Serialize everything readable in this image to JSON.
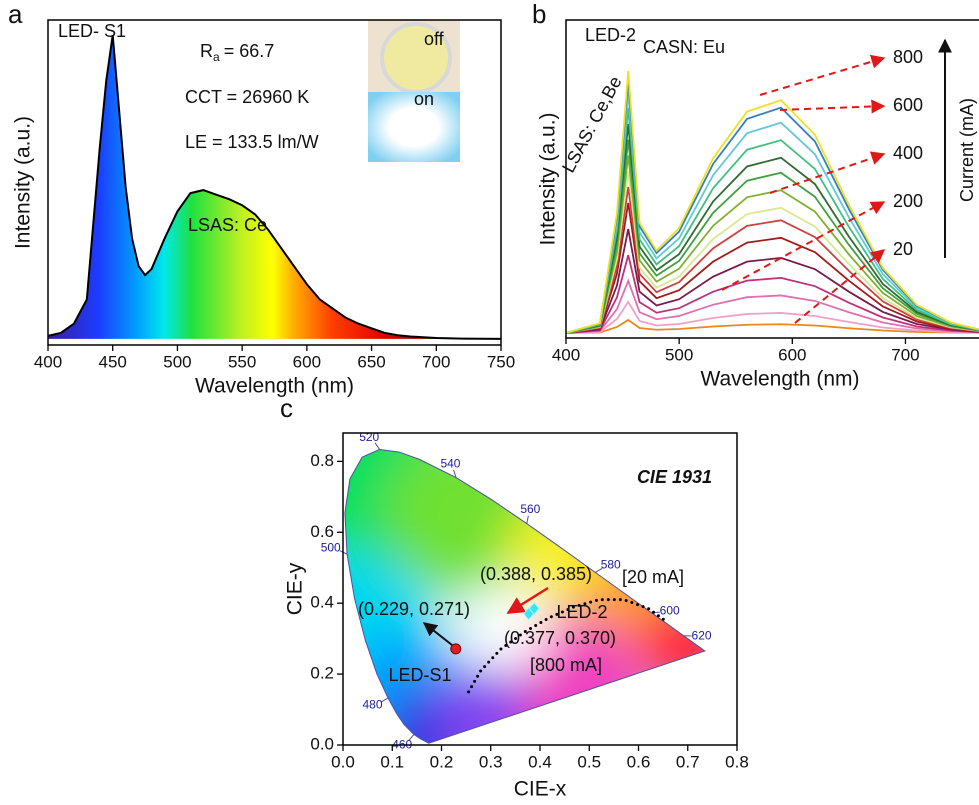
{
  "chart_data": [
    {
      "type": "area",
      "panel": "a",
      "label": "LED- S1",
      "ra": {
        "symbol": "R",
        "subscript": "a",
        "value": "= 66.7"
      },
      "cct": "CCT = 26960 K",
      "le": "LE = 133.5 lm/W",
      "phosphor": "LSAS: Ce",
      "inset_off": "off",
      "inset_on": "on",
      "x_label": "Wavelength (nm)",
      "y_label": "Intensity (a.u.)",
      "x": [
        400,
        410,
        420,
        430,
        440,
        445,
        450,
        455,
        460,
        465,
        470,
        475,
        480,
        490,
        500,
        510,
        520,
        530,
        540,
        550,
        560,
        570,
        580,
        590,
        600,
        610,
        620,
        630,
        640,
        650,
        660,
        670,
        680,
        700,
        720,
        750
      ],
      "values": [
        0.01,
        0.02,
        0.05,
        0.13,
        0.63,
        0.85,
        1.0,
        0.75,
        0.5,
        0.33,
        0.24,
        0.21,
        0.23,
        0.33,
        0.42,
        0.48,
        0.49,
        0.475,
        0.46,
        0.44,
        0.41,
        0.36,
        0.3,
        0.24,
        0.18,
        0.13,
        0.1,
        0.07,
        0.05,
        0.035,
        0.02,
        0.012,
        0.008,
        0.003,
        0.001,
        0
      ],
      "color": "#000000",
      "xlim": [
        400,
        750
      ],
      "ylim": [
        -0.02,
        1.05
      ],
      "xticks": [
        400,
        450,
        500,
        550,
        600,
        650,
        700,
        750
      ]
    },
    {
      "type": "line",
      "panel": "b",
      "label": "LED-2",
      "phosphors": [
        "CASN: Eu",
        "LSAS: Ce,Be"
      ],
      "x_label": "Wavelength (nm)",
      "y_label": "Intensity (a.u.)",
      "current_label": "Current (mA)",
      "current_ticks": [
        20,
        200,
        400,
        600,
        800
      ],
      "x": [
        400,
        430,
        445,
        455,
        465,
        480,
        500,
        530,
        560,
        590,
        620,
        650,
        680,
        710,
        740,
        765
      ],
      "series": [
        {
          "color": "#e8891c",
          "values": [
            0,
            0.002,
            0.024,
            0.052,
            0.02,
            0.013,
            0.016,
            0.026,
            0.033,
            0.035,
            0.03,
            0.019,
            0.01,
            0.004,
            0.002,
            0.001
          ]
        },
        {
          "color": "#f0a0c8",
          "values": [
            0,
            0.004,
            0.056,
            0.124,
            0.048,
            0.03,
            0.036,
            0.06,
            0.076,
            0.08,
            0.068,
            0.044,
            0.022,
            0.01,
            0.004,
            0.001
          ]
        },
        {
          "color": "#e070b0",
          "values": [
            0,
            0.008,
            0.095,
            0.208,
            0.083,
            0.055,
            0.068,
            0.113,
            0.143,
            0.15,
            0.128,
            0.083,
            0.042,
            0.018,
            0.007,
            0.002
          ]
        },
        {
          "color": "#c0307a",
          "values": [
            0,
            0.011,
            0.142,
            0.311,
            0.123,
            0.081,
            0.099,
            0.165,
            0.209,
            0.22,
            0.187,
            0.121,
            0.062,
            0.026,
            0.01,
            0.003
          ]
        },
        {
          "color": "#7a1a4a",
          "values": [
            0,
            0.015,
            0.189,
            0.415,
            0.165,
            0.11,
            0.135,
            0.225,
            0.285,
            0.3,
            0.255,
            0.165,
            0.084,
            0.036,
            0.014,
            0.005
          ]
        },
        {
          "color": "#a01c1c",
          "values": [
            0,
            0.019,
            0.236,
            0.519,
            0.207,
            0.139,
            0.171,
            0.285,
            0.361,
            0.38,
            0.323,
            0.209,
            0.106,
            0.046,
            0.017,
            0.006
          ]
        },
        {
          "color": "#d04040",
          "values": [
            0,
            0.021,
            0.266,
            0.583,
            0.236,
            0.163,
            0.203,
            0.338,
            0.428,
            0.45,
            0.383,
            0.248,
            0.126,
            0.054,
            0.02,
            0.007
          ]
        },
        {
          "color": "#d8e890",
          "values": [
            0,
            0.024,
            0.294,
            0.645,
            0.261,
            0.181,
            0.225,
            0.375,
            0.475,
            0.5,
            0.425,
            0.275,
            0.14,
            0.06,
            0.023,
            0.008
          ]
        },
        {
          "color": "#80b030",
          "values": [
            0,
            0.026,
            0.323,
            0.709,
            0.29,
            0.205,
            0.257,
            0.428,
            0.542,
            0.57,
            0.485,
            0.314,
            0.16,
            0.068,
            0.026,
            0.009
          ]
        },
        {
          "color": "#40a040",
          "values": [
            0,
            0.029,
            0.352,
            0.772,
            0.318,
            0.229,
            0.288,
            0.48,
            0.608,
            0.64,
            0.544,
            0.352,
            0.179,
            0.077,
            0.029,
            0.01
          ]
        },
        {
          "color": "#2f6a30",
          "values": [
            0,
            0.031,
            0.381,
            0.835,
            0.345,
            0.25,
            0.315,
            0.525,
            0.665,
            0.7,
            0.595,
            0.385,
            0.196,
            0.084,
            0.032,
            0.011
          ]
        },
        {
          "color": "#40c080",
          "values": [
            0,
            0.034,
            0.41,
            0.899,
            0.374,
            0.274,
            0.347,
            0.578,
            0.732,
            0.77,
            0.655,
            0.424,
            0.216,
            0.092,
            0.035,
            0.012
          ]
        },
        {
          "color": "#60c8d8",
          "values": [
            0,
            0.036,
            0.439,
            0.962,
            0.402,
            0.298,
            0.378,
            0.63,
            0.798,
            0.84,
            0.714,
            0.462,
            0.235,
            0.101,
            0.038,
            0.013
          ]
        },
        {
          "color": "#3080c0",
          "values": [
            0,
            0.038,
            0.464,
            1.015,
            0.426,
            0.319,
            0.405,
            0.675,
            0.855,
            0.9,
            0.765,
            0.495,
            0.252,
            0.108,
            0.041,
            0.014
          ]
        },
        {
          "color": "#f0e020",
          "values": [
            0,
            0.039,
            0.478,
            1.047,
            0.44,
            0.329,
            0.419,
            0.698,
            0.884,
            0.93,
            0.791,
            0.512,
            0.26,
            0.112,
            0.042,
            0.014
          ]
        }
      ],
      "xlim": [
        400,
        765
      ],
      "ylim": [
        -0.02,
        1.25
      ],
      "xticks": [
        400,
        500,
        600,
        700
      ]
    },
    {
      "type": "scatter",
      "panel": "c",
      "title": "CIE 1931",
      "x_label": "CIE-x",
      "y_label": "CIE-y",
      "xlim": [
        0,
        0.8
      ],
      "ylim": [
        0,
        0.88
      ],
      "xticks": [
        {
          "value": 0,
          "label": "0.0"
        },
        0.1,
        0.2,
        0.3,
        0.4,
        0.5,
        0.6,
        0.7,
        0.8
      ],
      "yticks": [
        {
          "value": 0,
          "label": "0.0"
        },
        0.2,
        0.4,
        0.6,
        0.8
      ],
      "locus": {
        "x": [
          0.1741,
          0.1566,
          0.144,
          0.1241,
          0.1096,
          0.0913,
          0.0687,
          0.0454,
          0.0235,
          0.0082,
          0.0039,
          0.0139,
          0.0389,
          0.0743,
          0.1142,
          0.1547,
          0.2296,
          0.3016,
          0.3731,
          0.4441,
          0.5125,
          0.5752,
          0.627,
          0.6658,
          0.6915,
          0.719,
          0.7347
        ],
        "y": [
          0.005,
          0.0177,
          0.0297,
          0.0578,
          0.0868,
          0.1327,
          0.2007,
          0.295,
          0.4127,
          0.5384,
          0.6548,
          0.7502,
          0.812,
          0.8338,
          0.8262,
          0.8059,
          0.7543,
          0.6923,
          0.6245,
          0.5547,
          0.4866,
          0.4242,
          0.3725,
          0.334,
          0.3083,
          0.2809,
          0.2653
        ]
      },
      "wavelength_labels": {
        "values": [
          460,
          480,
          500,
          520,
          540,
          560,
          580,
          600,
          620
        ],
        "x": [
          0.144,
          0.0913,
          0.0082,
          0.0743,
          0.2296,
          0.3731,
          0.5125,
          0.627,
          0.6915
        ],
        "y": [
          0.0297,
          0.1327,
          0.5384,
          0.8338,
          0.7543,
          0.6245,
          0.4866,
          0.3725,
          0.3083
        ]
      },
      "planckian": {
        "x": [
          0.255,
          0.28,
          0.32,
          0.37,
          0.42,
          0.47,
          0.52,
          0.57,
          0.62,
          0.66
        ],
        "y": [
          0.15,
          0.21,
          0.27,
          0.32,
          0.36,
          0.39,
          0.41,
          0.41,
          0.385,
          0.345
        ]
      },
      "points": [
        {
          "name": "LED-S1",
          "color": "#e02020",
          "x": [
            0.229
          ],
          "y": [
            0.271
          ],
          "value_labels": [
            "(0.229, 0.271)"
          ]
        },
        {
          "name": "LED-2",
          "color": "#40e0f0",
          "x": [
            0.388,
            0.377
          ],
          "y": [
            0.385,
            0.37
          ],
          "value_labels": [
            "(0.388, 0.385)",
            "(0.377, 0.370)"
          ],
          "currents": [
            "[20 mA]",
            "[800 mA]"
          ]
        }
      ]
    }
  ]
}
